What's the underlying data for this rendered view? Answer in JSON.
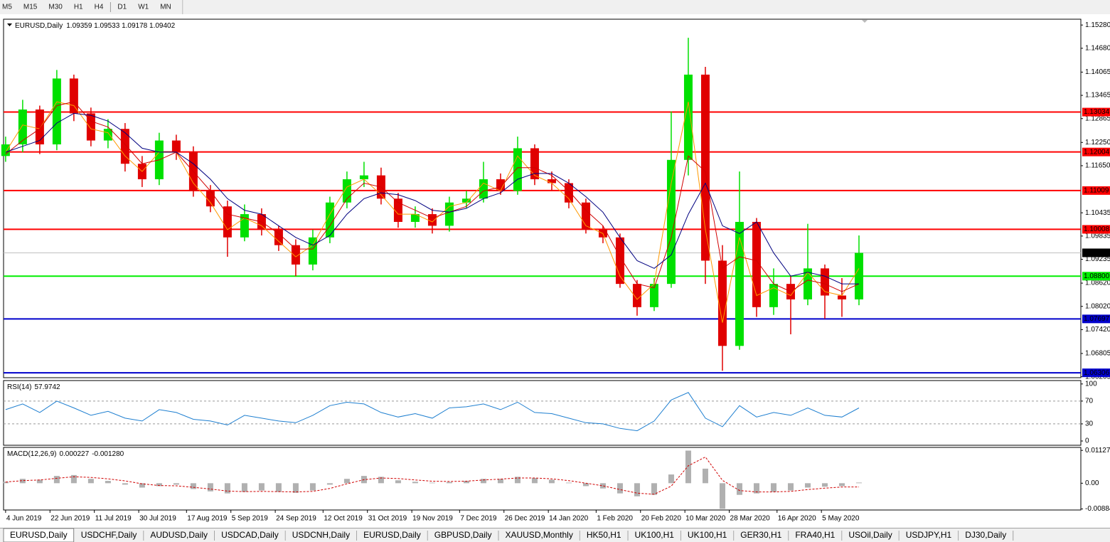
{
  "toolbar": {
    "timeframes": [
      "M5",
      "M15",
      "M30",
      "H1",
      "H4",
      "D1",
      "W1",
      "MN"
    ]
  },
  "chart_data": [
    {
      "type": "candlestick",
      "title": "EURUSD,Daily",
      "quote": "1.09359 1.09533 1.09178 1.09402",
      "x": [
        0,
        5,
        10,
        15,
        20,
        25,
        30,
        35,
        40,
        45,
        50,
        55,
        60,
        65,
        70,
        75,
        80,
        85,
        90,
        95,
        100,
        105,
        110,
        115,
        120,
        125,
        130,
        135,
        140,
        145,
        150,
        155,
        160,
        165,
        170,
        175,
        180,
        185,
        190,
        195,
        200,
        205,
        210,
        215,
        220,
        225,
        230,
        235,
        240,
        245,
        250
      ],
      "xlim": [
        -0.6,
        315
      ],
      "xticks": [
        {
          "value": 0,
          "label": "4 Jun 2019"
        },
        {
          "value": 13,
          "label": "22 Jun 2019"
        },
        {
          "value": 26,
          "label": "11 Jul 2019"
        },
        {
          "value": 39,
          "label": "30 Jul 2019"
        },
        {
          "value": 53,
          "label": "17 Aug 2019"
        },
        {
          "value": 66,
          "label": "5 Sep 2019"
        },
        {
          "value": 79,
          "label": "24 Sep 2019"
        },
        {
          "value": 93,
          "label": "12 Oct 2019"
        },
        {
          "value": 106,
          "label": "31 Oct 2019"
        },
        {
          "value": 119,
          "label": "19 Nov 2019"
        },
        {
          "value": 133,
          "label": "7 Dec 2019"
        },
        {
          "value": 146,
          "label": "26 Dec 2019"
        },
        {
          "value": 159,
          "label": "14 Jan 2020"
        },
        {
          "value": 173,
          "label": "1 Feb 2020"
        },
        {
          "value": 186,
          "label": "20 Feb 2020"
        },
        {
          "value": 199,
          "label": "10 Mar 2020"
        },
        {
          "value": 212,
          "label": "28 Mar 2020"
        },
        {
          "value": 226,
          "label": "16 Apr 2020"
        },
        {
          "value": 239,
          "label": "5 May 2020"
        }
      ],
      "ylim": [
        1.0618,
        1.1543
      ],
      "yticks": [
        {
          "value": 1.1528,
          "label": "1.15280"
        },
        {
          "value": 1.1468,
          "label": "1.14680"
        },
        1.14065,
        1.13465,
        1.12865,
        {
          "value": 1.1225,
          "label": "1.12250"
        },
        {
          "value": 1.1165,
          "label": "1.11650"
        },
        1.10435,
        1.09835,
        1.09235,
        {
          "value": 1.0862,
          "label": "1.08620"
        },
        {
          "value": 1.0802,
          "label": "1.08020"
        },
        {
          "value": 1.0742,
          "label": "1.07420"
        },
        1.06805,
        1.06205
      ],
      "open": [
        1.119,
        1.122,
        1.131,
        1.122,
        1.139,
        1.13,
        1.123,
        1.126,
        1.117,
        1.113,
        1.123,
        1.12,
        1.11,
        1.106,
        1.098,
        1.104,
        1.1,
        1.096,
        1.091,
        1.098,
        1.107,
        1.113,
        1.114,
        1.108,
        1.102,
        1.104,
        1.101,
        1.107,
        1.108,
        1.113,
        1.11,
        1.121,
        1.113,
        1.112,
        1.107,
        1.1,
        1.098,
        1.086,
        1.08,
        1.086,
        1.118,
        1.14,
        1.092,
        1.07,
        1.102,
        1.08,
        1.086,
        1.082,
        1.09,
        1.083,
        1.082
      ],
      "high": [
        1.124,
        1.1335,
        1.132,
        1.1412,
        1.14,
        1.1315,
        1.1285,
        1.1275,
        1.119,
        1.125,
        1.1245,
        1.1215,
        1.1115,
        1.1075,
        1.1065,
        1.1055,
        1.101,
        1.0975,
        1.1,
        1.1085,
        1.115,
        1.1175,
        1.116,
        1.1095,
        1.106,
        1.1055,
        1.1085,
        1.11,
        1.1175,
        1.1145,
        1.124,
        1.122,
        1.115,
        1.113,
        1.108,
        1.101,
        1.099,
        1.087,
        1.0875,
        1.1305,
        1.1495,
        1.142,
        1.096,
        1.115,
        1.103,
        1.09,
        1.088,
        1.1015,
        1.091,
        1.0875,
        1.0985
      ],
      "low": [
        1.1175,
        1.12,
        1.1195,
        1.1205,
        1.128,
        1.1215,
        1.121,
        1.115,
        1.111,
        1.1115,
        1.118,
        1.1085,
        1.1045,
        1.093,
        1.097,
        1.0985,
        1.0945,
        1.088,
        1.0895,
        1.0965,
        1.1055,
        1.111,
        1.1065,
        1.1005,
        1.1005,
        1.099,
        1.0995,
        1.1055,
        1.107,
        1.109,
        1.109,
        1.1115,
        1.11,
        1.1055,
        1.099,
        1.0965,
        1.085,
        1.0778,
        1.079,
        1.085,
        1.114,
        1.086,
        1.0636,
        1.069,
        1.0775,
        1.078,
        1.073,
        1.0805,
        1.077,
        1.0775,
        1.0805
      ],
      "close": [
        1.122,
        1.131,
        1.122,
        1.139,
        1.13,
        1.123,
        1.126,
        1.117,
        1.113,
        1.123,
        1.12,
        1.11,
        1.106,
        1.098,
        1.104,
        1.1,
        1.096,
        1.091,
        1.098,
        1.107,
        1.113,
        1.114,
        1.108,
        1.102,
        1.104,
        1.101,
        1.107,
        1.108,
        1.113,
        1.11,
        1.121,
        1.113,
        1.112,
        1.107,
        1.1,
        1.098,
        1.086,
        1.08,
        1.086,
        1.118,
        1.14,
        1.092,
        1.07,
        1.102,
        1.08,
        1.086,
        1.082,
        1.09,
        1.083,
        1.082,
        1.094
      ],
      "up_color": "#00e000",
      "down_color": "#e00000",
      "series": [
        {
          "color": "#ff9900",
          "values": [
            1.12,
            1.127,
            1.126,
            1.133,
            1.132,
            1.126,
            1.125,
            1.119,
            1.115,
            1.12,
            1.12,
            1.112,
            1.107,
            1.1,
            1.103,
            1.101,
            1.097,
            1.093,
            1.096,
            1.104,
            1.111,
            1.113,
            1.109,
            1.104,
            1.104,
            1.102,
            1.106,
            1.107,
            1.112,
            1.11,
            1.119,
            1.114,
            1.112,
            1.108,
            1.101,
            1.099,
            1.088,
            1.082,
            1.086,
            1.112,
            1.133,
            1.1,
            1.076,
            1.098,
            1.083,
            1.085,
            1.083,
            1.089,
            1.084,
            1.083,
            1.09
          ]
        },
        {
          "color": "#d00000",
          "values": [
            1.1195,
            1.123,
            1.126,
            1.132,
            1.133,
            1.128,
            1.1265,
            1.122,
            1.117,
            1.118,
            1.12,
            1.115,
            1.11,
            1.104,
            1.103,
            1.102,
            1.099,
            1.095,
            1.095,
            1.101,
            1.108,
            1.112,
            1.111,
            1.107,
            1.105,
            1.103,
            1.1045,
            1.106,
            1.11,
            1.111,
            1.116,
            1.116,
            1.114,
            1.11,
            1.105,
            1.101,
            1.093,
            1.086,
            1.085,
            1.098,
            1.119,
            1.115,
            1.09,
            1.093,
            1.092,
            1.086,
            1.084,
            1.087,
            1.086,
            1.084,
            1.086
          ]
        },
        {
          "color": "#000080",
          "values": [
            1.12,
            1.1215,
            1.123,
            1.1275,
            1.13,
            1.1295,
            1.128,
            1.125,
            1.121,
            1.12,
            1.12,
            1.117,
            1.113,
            1.108,
            1.105,
            1.104,
            1.101,
            1.098,
            1.096,
            1.0985,
            1.104,
            1.108,
            1.1095,
            1.109,
            1.1075,
            1.105,
            1.1045,
            1.1055,
            1.108,
            1.1095,
            1.113,
            1.1145,
            1.1145,
            1.112,
            1.1085,
            1.1045,
            1.098,
            1.092,
            1.09,
            1.0935,
            1.104,
            1.112,
            1.101,
            1.099,
            1.102,
            1.094,
            1.088,
            1.089,
            1.088,
            1.086,
            1.086
          ]
        }
      ],
      "levels": [
        {
          "value": 1.13034,
          "color": "#ff0000"
        },
        {
          "value": 1.12004,
          "color": "#ff0000"
        },
        {
          "value": 1.11009,
          "color": "#ff0000"
        },
        {
          "value": 1.10008,
          "color": "#ff0000"
        },
        {
          "value": 1.088,
          "label": "1.08800",
          "color": "#00ee00"
        },
        {
          "value": 1.07697,
          "color": "#0000cc"
        },
        {
          "value": 1.06306,
          "color": "#0000cc"
        }
      ],
      "last_price": {
        "value": 1.09402,
        "color": "#c0c0c0"
      }
    },
    {
      "type": "line",
      "title": "RSI(14)",
      "readout": [
        "57.9742"
      ],
      "ylim": [
        -7.5,
        106
      ],
      "yticks": [
        0,
        30,
        70,
        100
      ],
      "levels": [
        70,
        30
      ],
      "series": [
        {
          "color": "#1e7fd0",
          "values": [
            55,
            65,
            50,
            70,
            58,
            45,
            52,
            40,
            35,
            55,
            50,
            38,
            35,
            28,
            45,
            40,
            35,
            32,
            45,
            62,
            68,
            65,
            50,
            42,
            48,
            40,
            58,
            60,
            65,
            55,
            68,
            50,
            48,
            40,
            32,
            30,
            22,
            18,
            35,
            72,
            85,
            40,
            25,
            62,
            42,
            50,
            45,
            58,
            45,
            42,
            57.9742
          ]
        }
      ]
    },
    {
      "type": "combo",
      "title": "MACD(12,26,9)",
      "readout": [
        "0.000227",
        "-0.001280"
      ],
      "ylim": [
        -0.0092,
        0.0123
      ],
      "yticks": [
        0.011277,
        {
          "value": 0,
          "label": "0.00"
        },
        -0.00884
      ],
      "series": [
        {
          "type": "bar",
          "color": "#b0b0b0",
          "values": [
            0.0005,
            0.0015,
            0.0012,
            0.0025,
            0.0028,
            0.0015,
            0.0008,
            -0.0005,
            -0.0015,
            -0.001,
            -0.0005,
            -0.002,
            -0.0028,
            -0.0035,
            -0.003,
            -0.0025,
            -0.003,
            -0.0033,
            -0.0025,
            -0.0005,
            0.0015,
            0.0025,
            0.0022,
            0.001,
            0.0005,
            0.0002,
            0.0004,
            0.0008,
            0.0015,
            0.0015,
            0.0022,
            0.0018,
            0.0012,
            0.0002,
            -0.001,
            -0.0018,
            -0.0035,
            -0.0045,
            -0.004,
            0.003,
            0.0112,
            0.005,
            -0.0088,
            -0.004,
            -0.0035,
            -0.003,
            -0.0025,
            -0.0015,
            -0.0012,
            -0.001,
            0.000227
          ]
        },
        {
          "type": "line",
          "color": "#d00000",
          "values": [
            0.0004,
            0.0009,
            0.0011,
            0.0017,
            0.0022,
            0.002,
            0.0015,
            0.0008,
            -0.0002,
            -0.0008,
            -0.0009,
            -0.0014,
            -0.002,
            -0.0027,
            -0.0029,
            -0.0028,
            -0.0029,
            -0.003,
            -0.0028,
            -0.0018,
            -0.0002,
            0.0012,
            0.0018,
            0.0016,
            0.0011,
            0.0007,
            0.0006,
            0.0007,
            0.0011,
            0.0014,
            0.0018,
            0.0018,
            0.0015,
            0.0009,
            0.0,
            -0.0009,
            -0.0022,
            -0.0034,
            -0.0038,
            -0.001,
            0.006,
            0.009,
            0.001,
            -0.0025,
            -0.003,
            -0.003,
            -0.0028,
            -0.0022,
            -0.0017,
            -0.0013,
            -0.00128
          ]
        }
      ]
    }
  ],
  "tabs": {
    "items": [
      "EURUSD,Daily",
      "USDCHF,Daily",
      "AUDUSD,Daily",
      "USDCAD,Daily",
      "USDCNH,Daily",
      "EURUSD,Daily",
      "GBPUSD,Daily",
      "XAUUSD,Monthly",
      "HK50,H1",
      "UK100,H1",
      "UK100,H1",
      "GER30,H1",
      "FRA40,H1",
      "USOil,Daily",
      "USDJPY,H1",
      "DJ30,Daily"
    ],
    "active": 0
  }
}
